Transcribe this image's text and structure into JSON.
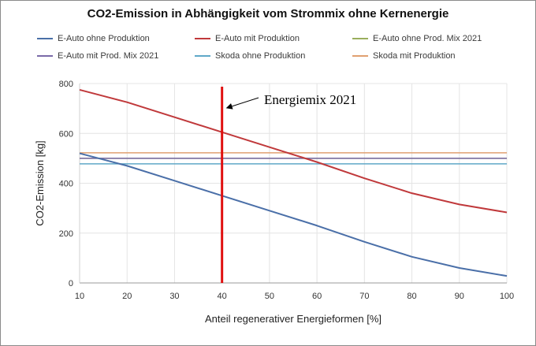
{
  "chart_data": {
    "type": "line",
    "title": "CO2-Emission in Abhängigkeit vom Strommix ohne Kernenergie",
    "xlabel": "Anteil regenerativer Energieformen [%]",
    "ylabel": "CO2-Emission [kg]",
    "xlim": [
      10,
      100
    ],
    "ylim": [
      0,
      800
    ],
    "xticks": [
      10,
      20,
      30,
      40,
      50,
      60,
      70,
      80,
      90,
      100
    ],
    "yticks": [
      0,
      200,
      400,
      600,
      800
    ],
    "grid": true,
    "legend_position": "top",
    "series": [
      {
        "name": "E-Auto ohne Produktion",
        "color": "#4a6fa8",
        "x": [
          10,
          20,
          30,
          40,
          50,
          60,
          70,
          80,
          90,
          100
        ],
        "y": [
          520,
          470,
          410,
          350,
          290,
          230,
          165,
          105,
          60,
          28
        ]
      },
      {
        "name": "E-Auto mit Produktion",
        "color": "#c0393b",
        "x": [
          10,
          20,
          30,
          40,
          50,
          60,
          70,
          80,
          90,
          100
        ],
        "y": [
          775,
          725,
          665,
          605,
          545,
          485,
          420,
          360,
          315,
          283
        ]
      },
      {
        "name": "E-Auto ohne Prod. Mix 2021",
        "color": "#9aae5c",
        "x": [
          10,
          100
        ],
        "y": [
          500,
          500
        ]
      },
      {
        "name": "E-Auto mit Prod. Mix 2021",
        "color": "#7a6aa8",
        "x": [
          10,
          100
        ],
        "y": [
          500,
          500
        ]
      },
      {
        "name": "Skoda ohne Produktion",
        "color": "#5fa8c8",
        "x": [
          10,
          100
        ],
        "y": [
          478,
          478
        ]
      },
      {
        "name": "Skoda mit Produktion",
        "color": "#e0a070",
        "x": [
          10,
          100
        ],
        "y": [
          522,
          522
        ]
      }
    ],
    "marker": {
      "x": 40,
      "color": "#e01010"
    },
    "annotation": {
      "text": "Energiemix 2021",
      "points_to_x": 40,
      "points_to_y": 700
    }
  }
}
